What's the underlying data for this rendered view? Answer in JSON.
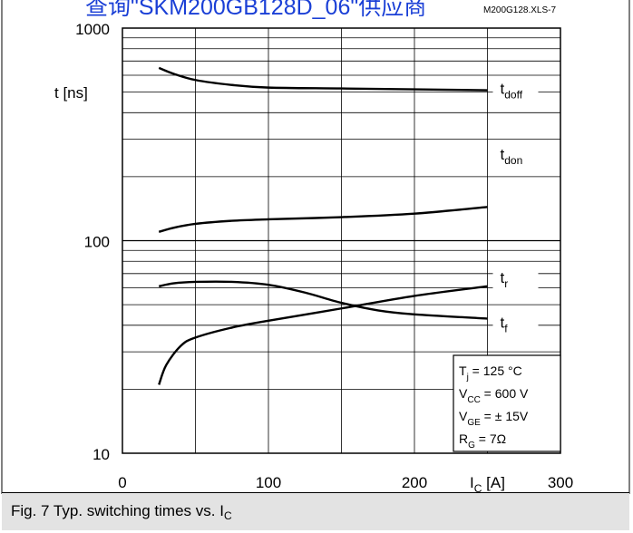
{
  "header": {
    "link_text": "查询\"SKM200GB128D_06\"供应商",
    "doc_code": "M200G128.XLS-7"
  },
  "caption": {
    "text": "Fig. 7 Typ. switching times vs. I",
    "subscript": "C"
  },
  "chart_data": {
    "type": "line",
    "ylabel": "t [ns]",
    "xlabel": "I",
    "xlabel_sub": "C",
    "xlabel_unit": " [A]",
    "xlim": [
      0,
      300
    ],
    "ylim": [
      10,
      1000
    ],
    "yscale": "log",
    "grid": true,
    "x_ticks": [
      {
        "value": 0,
        "label": "0"
      },
      {
        "value": 100,
        "label": "100"
      },
      {
        "value": 200,
        "label": "200"
      },
      {
        "value": 300,
        "label": "300"
      }
    ],
    "y_ticks": [
      {
        "value": 10,
        "label": "10"
      },
      {
        "value": 100,
        "label": "100"
      },
      {
        "value": 1000,
        "label": "1000"
      }
    ],
    "series": [
      {
        "name": "t",
        "sub": "doff",
        "x": [
          25,
          35,
          50,
          75,
          100,
          150,
          200,
          250
        ],
        "y": [
          650,
          610,
          570,
          540,
          525,
          520,
          515,
          510
        ]
      },
      {
        "name": "t",
        "sub": "don",
        "x": [
          25,
          35,
          50,
          75,
          100,
          150,
          200,
          250
        ],
        "y": [
          110,
          115,
          120,
          124,
          126,
          129,
          134,
          144
        ]
      },
      {
        "name": "t",
        "sub": "r",
        "x": [
          25,
          30,
          40,
          50,
          75,
          100,
          150,
          200,
          250
        ],
        "y": [
          21,
          26,
          32,
          35,
          39,
          42,
          48,
          55,
          61
        ]
      },
      {
        "name": "t",
        "sub": "f",
        "x": [
          25,
          35,
          50,
          75,
          100,
          125,
          150,
          175,
          200,
          250
        ],
        "y": [
          61,
          63,
          64,
          64,
          62,
          57,
          51,
          47,
          45,
          43
        ]
      }
    ],
    "conditions": [
      {
        "sym": "T",
        "sub": "j",
        "val": "= 125 °C"
      },
      {
        "sym": "V",
        "sub": "CC",
        "val": "= 600 V"
      },
      {
        "sym": "V",
        "sub": "GE",
        "val": "= ± 15V"
      },
      {
        "sym": "R",
        "sub": "G",
        "val": "= 7Ω"
      }
    ],
    "colors": {
      "line": "#000000",
      "grid": "#000000",
      "link": "#1a3fd6",
      "caption_bg": "#e3e3e3"
    }
  }
}
